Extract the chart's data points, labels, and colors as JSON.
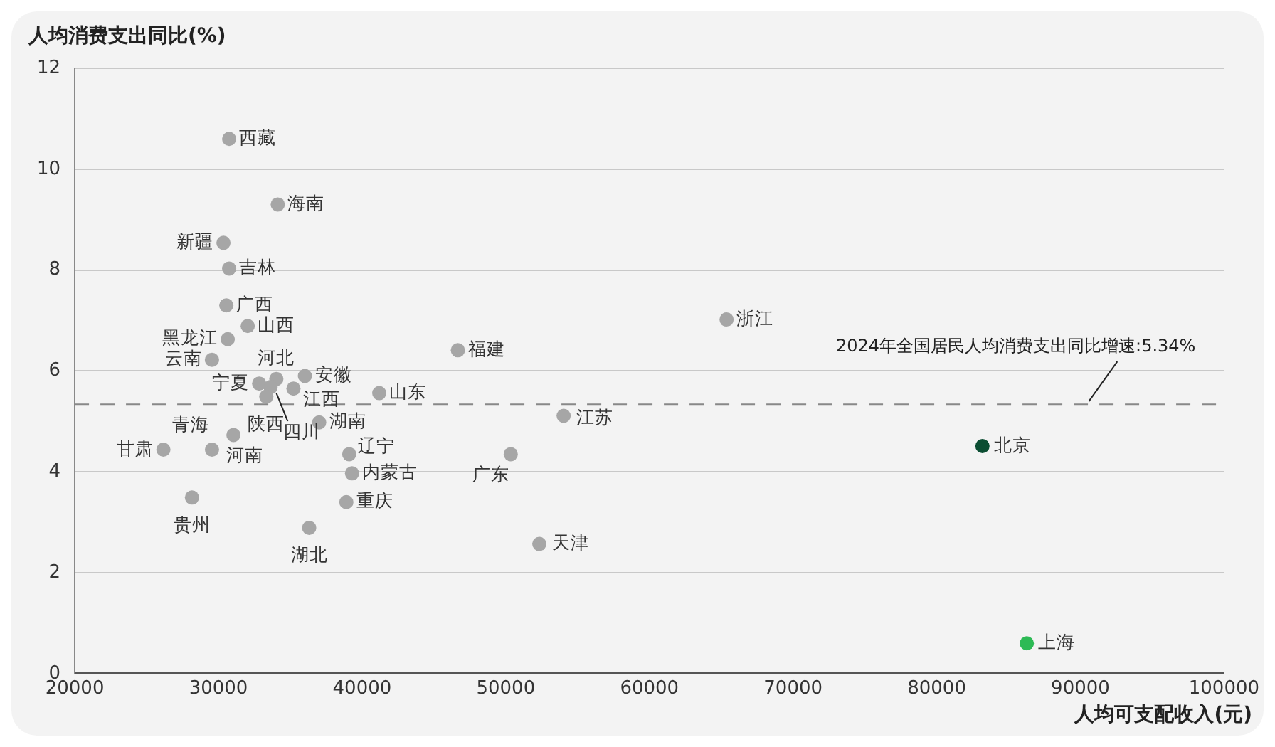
{
  "chart_data": {
    "type": "scatter",
    "xlabel": "人均可支配收入(元)",
    "ylabel": "人均消费支出同比(%)",
    "x": [
      30746,
      34130,
      30350,
      30746,
      30550,
      32040,
      30650,
      29550,
      34030,
      32836,
      33632,
      33333,
      31045,
      29552,
      26169,
      28159,
      36020,
      35224,
      37015,
      41194,
      39104,
      39303,
      38905,
      36318,
      46667,
      65373,
      54030,
      50348,
      52338,
      83184,
      86269
    ],
    "values": [
      10.6,
      9.3,
      8.54,
      8.03,
      7.3,
      6.89,
      6.63,
      6.22,
      5.84,
      5.75,
      5.68,
      5.49,
      4.73,
      4.44,
      4.44,
      3.49,
      5.9,
      5.65,
      4.98,
      5.56,
      4.35,
      3.97,
      3.4,
      2.89,
      6.41,
      7.02,
      5.11,
      4.35,
      2.57,
      4.51,
      0.6
    ],
    "colors": [
      "#a6a6a6",
      "#a6a6a6",
      "#a6a6a6",
      "#a6a6a6",
      "#a6a6a6",
      "#a6a6a6",
      "#a6a6a6",
      "#a6a6a6",
      "#a6a6a6",
      "#a6a6a6",
      "#a6a6a6",
      "#a6a6a6",
      "#a6a6a6",
      "#a6a6a6",
      "#a6a6a6",
      "#a6a6a6",
      "#a6a6a6",
      "#a6a6a6",
      "#a6a6a6",
      "#a6a6a6",
      "#a6a6a6",
      "#a6a6a6",
      "#a6a6a6",
      "#a6a6a6",
      "#a6a6a6",
      "#a6a6a6",
      "#a6a6a6",
      "#a6a6a6",
      "#a6a6a6",
      "#0b4d32",
      "#2dba55"
    ],
    "annotations": [
      {
        "text": "西藏",
        "x": 30746,
        "y": 10.6
      },
      {
        "text": "海南",
        "x": 34130,
        "y": 9.3
      },
      {
        "text": "新疆",
        "x": 30350,
        "y": 8.54
      },
      {
        "text": "吉林",
        "x": 30746,
        "y": 8.03
      },
      {
        "text": "广西",
        "x": 30550,
        "y": 7.3
      },
      {
        "text": "山西",
        "x": 32040,
        "y": 6.89
      },
      {
        "text": "黑龙江",
        "x": 30650,
        "y": 6.63
      },
      {
        "text": "云南",
        "x": 29550,
        "y": 6.22
      },
      {
        "text": "河北",
        "x": 34030,
        "y": 5.84
      },
      {
        "text": "宁夏",
        "x": 32836,
        "y": 5.75
      },
      {
        "text": "四川",
        "x": 33632,
        "y": 5.68
      },
      {
        "text": "陕西",
        "x": 33333,
        "y": 5.49
      },
      {
        "text": "河南",
        "x": 31045,
        "y": 4.73
      },
      {
        "text": "青海",
        "x": 29552,
        "y": 4.44
      },
      {
        "text": "甘肃",
        "x": 26169,
        "y": 4.44
      },
      {
        "text": "贵州",
        "x": 28159,
        "y": 3.49
      },
      {
        "text": "安徽",
        "x": 36020,
        "y": 5.9
      },
      {
        "text": "江西",
        "x": 35224,
        "y": 5.65
      },
      {
        "text": "湖南",
        "x": 37015,
        "y": 4.98
      },
      {
        "text": "山东",
        "x": 41194,
        "y": 5.56
      },
      {
        "text": "辽宁",
        "x": 39104,
        "y": 4.35
      },
      {
        "text": "内蒙古",
        "x": 39303,
        "y": 3.97
      },
      {
        "text": "重庆",
        "x": 38905,
        "y": 3.4
      },
      {
        "text": "湖北",
        "x": 36318,
        "y": 2.89
      },
      {
        "text": "福建",
        "x": 46667,
        "y": 6.41
      },
      {
        "text": "浙江",
        "x": 65373,
        "y": 7.02
      },
      {
        "text": "江苏",
        "x": 54030,
        "y": 5.11
      },
      {
        "text": "广东",
        "x": 50348,
        "y": 4.35
      },
      {
        "text": "天津",
        "x": 52338,
        "y": 2.57
      },
      {
        "text": "北京",
        "x": 83184,
        "y": 4.51
      },
      {
        "text": "上海",
        "x": 86269,
        "y": 0.6
      }
    ],
    "ref_lines": [
      {
        "axis": "y",
        "value": 5.34,
        "label": "2024年全国居民人均消费支出同比增速:5.34%",
        "color": "#888888",
        "line_style": "dashed"
      }
    ],
    "xlim": [
      20000,
      100000
    ],
    "xticks": [
      20000,
      30000,
      40000,
      50000,
      60000,
      70000,
      80000,
      90000,
      100000
    ],
    "ylim": [
      0,
      12
    ],
    "yticks": [
      0,
      2,
      4,
      6,
      8,
      10,
      12
    ],
    "grid": "y",
    "marker": "circle"
  }
}
